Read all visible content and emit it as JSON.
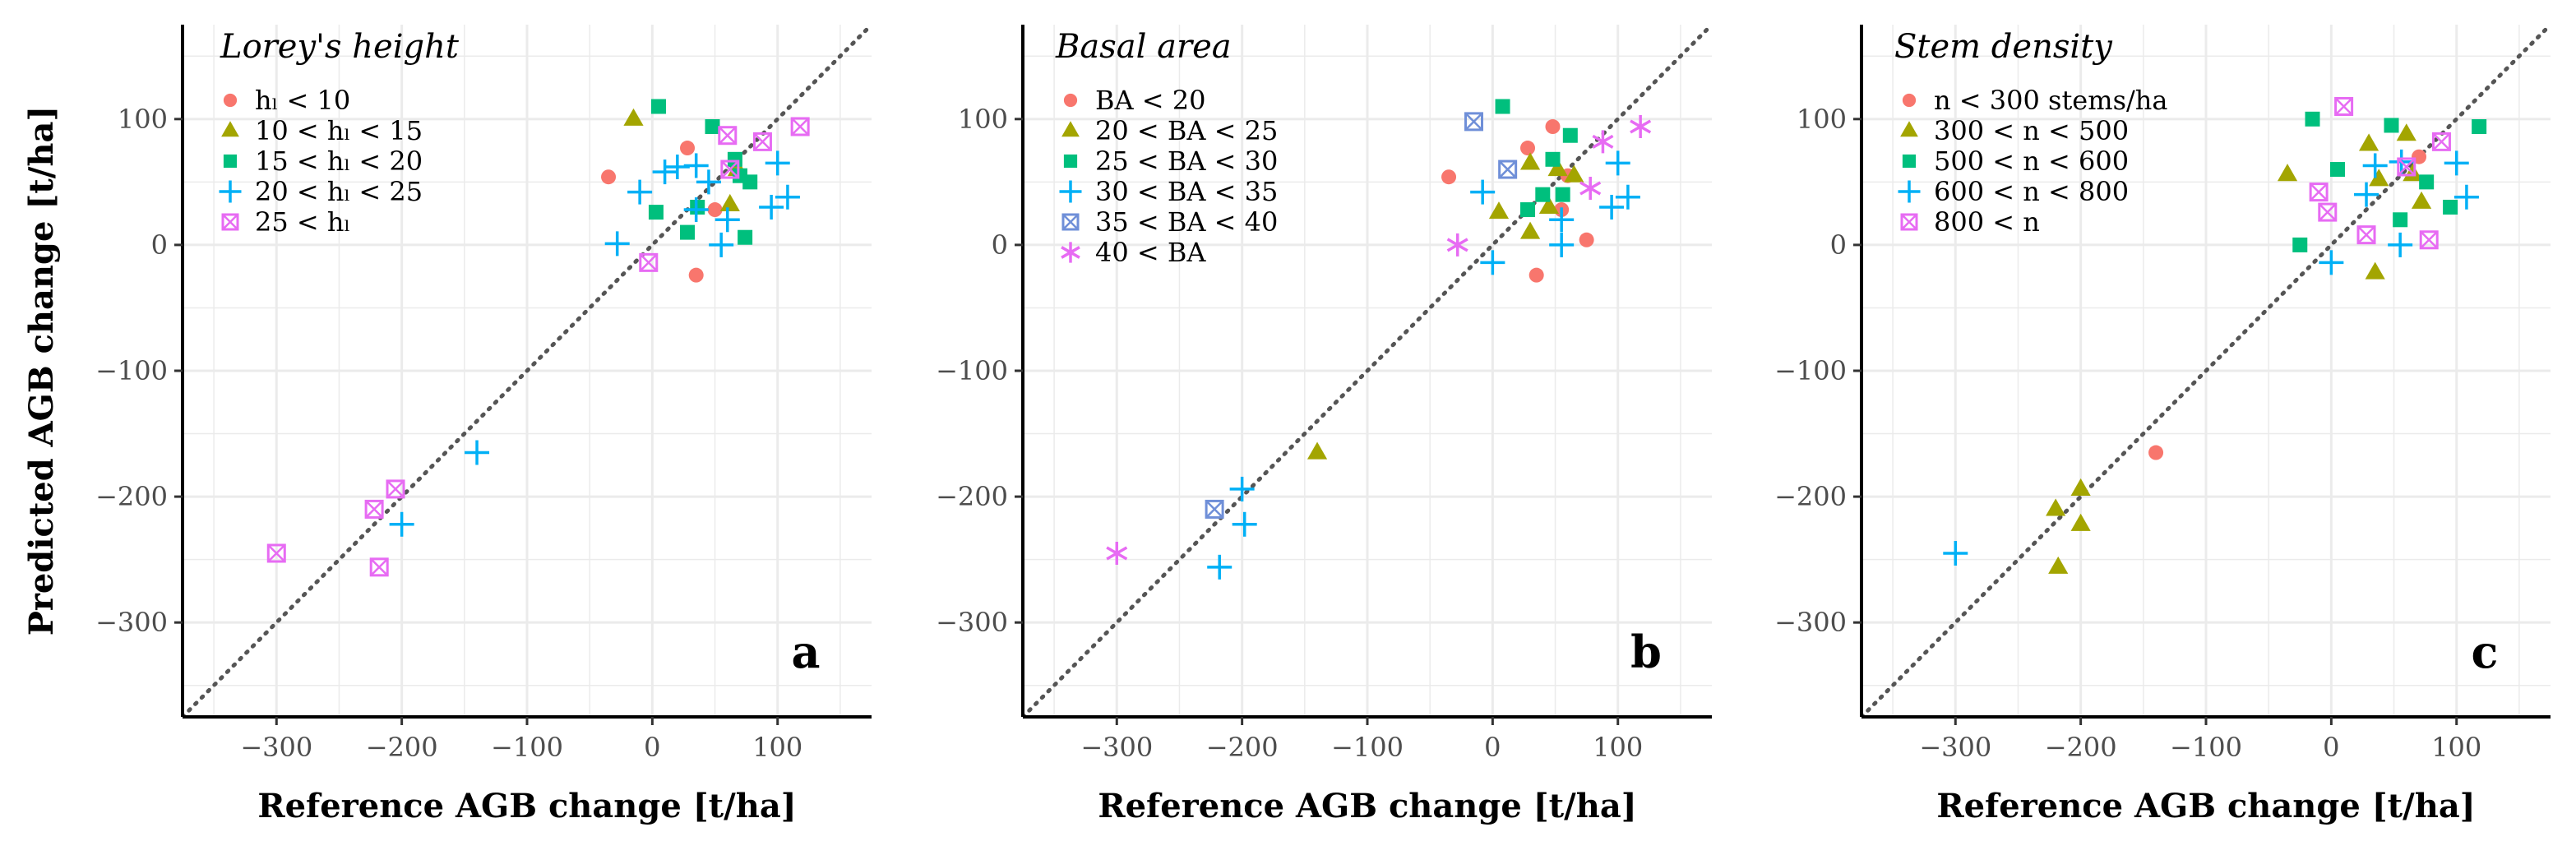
{
  "figure": {
    "ylabel": "Predicted AGB change [t/ha]",
    "xlabel": "Reference AGB change [t/ha]"
  },
  "colors": {
    "c1": "#F8766D",
    "c2": "#A3A500",
    "c3": "#00BF7D",
    "c4": "#00B0F6",
    "c5": "#E76BF3",
    "c5b": "#6F8FD8",
    "c6": "#E76BF3",
    "diag": "#555555",
    "grid": "#ebebeb"
  },
  "chart_data": [
    {
      "panel": "a",
      "type": "scatter",
      "title": "Lorey's height",
      "xlabel": "Reference AGB change [t/ha]",
      "ylabel": "Predicted AGB change [t/ha]",
      "xlim": [
        -375,
        175
      ],
      "ylim": [
        -375,
        175
      ],
      "xticks": [
        -300,
        -200,
        -100,
        0,
        100
      ],
      "yticks": [
        -300,
        -200,
        -100,
        0,
        100
      ],
      "tick_labels": [
        "−300",
        "−200",
        "−100",
        "0",
        "100"
      ],
      "reference_line": "y = x",
      "legend": [
        {
          "label": "hₗ < 10",
          "marker": "circle",
          "color": "#F8766D"
        },
        {
          "label": "10 < hₗ < 15",
          "marker": "triangle",
          "color": "#A3A500"
        },
        {
          "label": "15 < hₗ < 20",
          "marker": "square",
          "color": "#00BF7D"
        },
        {
          "label": "20 < hₗ < 25",
          "marker": "plus",
          "color": "#00B0F6"
        },
        {
          "label": "25 < hₗ",
          "marker": "boxx",
          "color": "#E76BF3"
        }
      ],
      "series": [
        {
          "name": "hₗ < 10",
          "marker": "circle",
          "color": "#F8766D",
          "points": [
            [
              -35,
              54
            ],
            [
              28,
              77
            ],
            [
              35,
              -24
            ],
            [
              50,
              28
            ]
          ]
        },
        {
          "name": "10 < hₗ < 15",
          "marker": "triangle",
          "color": "#A3A500",
          "points": [
            [
              -15,
              100
            ],
            [
              62,
              32
            ],
            [
              68,
              60
            ]
          ]
        },
        {
          "name": "15 < hₗ < 20",
          "marker": "square",
          "color": "#00BF7D",
          "points": [
            [
              5,
              110
            ],
            [
              48,
              94
            ],
            [
              3,
              26
            ],
            [
              28,
              10
            ],
            [
              36,
              30
            ],
            [
              74,
              6
            ],
            [
              70,
              55
            ],
            [
              66,
              68
            ],
            [
              78,
              50
            ]
          ]
        },
        {
          "name": "20 < hₗ < 25",
          "marker": "plus",
          "color": "#00B0F6",
          "points": [
            [
              -28,
              1
            ],
            [
              -10,
              42
            ],
            [
              10,
              58
            ],
            [
              20,
              62
            ],
            [
              35,
              63
            ],
            [
              35,
              28
            ],
            [
              45,
              50
            ],
            [
              55,
              0
            ],
            [
              60,
              20
            ],
            [
              100,
              65
            ],
            [
              95,
              30
            ],
            [
              108,
              38
            ],
            [
              -140,
              -165
            ],
            [
              -200,
              -222
            ]
          ]
        },
        {
          "name": "25 < hₗ",
          "marker": "boxx",
          "color": "#E76BF3",
          "points": [
            [
              -3,
              -14
            ],
            [
              60,
              87
            ],
            [
              88,
              82
            ],
            [
              118,
              94
            ],
            [
              62,
              60
            ],
            [
              -205,
              -194
            ],
            [
              -222,
              -210
            ],
            [
              -218,
              -256
            ],
            [
              -300,
              -245
            ]
          ]
        }
      ]
    },
    {
      "panel": "b",
      "type": "scatter",
      "title": "Basal area",
      "xlabel": "Reference AGB change [t/ha]",
      "xlim": [
        -375,
        175
      ],
      "ylim": [
        -375,
        175
      ],
      "xticks": [
        -300,
        -200,
        -100,
        0,
        100
      ],
      "yticks": [
        -300,
        -200,
        -100,
        0,
        100
      ],
      "tick_labels": [
        "−300",
        "−200",
        "−100",
        "0",
        "100"
      ],
      "reference_line": "y = x",
      "legend": [
        {
          "label": "BA < 20",
          "marker": "circle",
          "color": "#F8766D"
        },
        {
          "label": "20 < BA < 25",
          "marker": "triangle",
          "color": "#A3A500"
        },
        {
          "label": "25 < BA < 30",
          "marker": "square",
          "color": "#00BF7D"
        },
        {
          "label": "30 < BA < 35",
          "marker": "plus",
          "color": "#00B0F6"
        },
        {
          "label": "35 < BA < 40",
          "marker": "boxx",
          "color": "#6F8FD8"
        },
        {
          "label": "40 < BA",
          "marker": "asterisk",
          "color": "#E76BF3"
        }
      ],
      "series": [
        {
          "name": "BA < 20",
          "marker": "circle",
          "color": "#F8766D",
          "points": [
            [
              -35,
              54
            ],
            [
              48,
              94
            ],
            [
              28,
              77
            ],
            [
              35,
              -24
            ],
            [
              60,
              55
            ],
            [
              75,
              4
            ],
            [
              55,
              28
            ]
          ]
        },
        {
          "name": "20 < BA < 25",
          "marker": "triangle",
          "color": "#A3A500",
          "points": [
            [
              5,
              26
            ],
            [
              30,
              65
            ],
            [
              45,
              30
            ],
            [
              52,
              60
            ],
            [
              65,
              55
            ],
            [
              30,
              10
            ],
            [
              -140,
              -165
            ]
          ]
        },
        {
          "name": "25 < BA < 30",
          "marker": "square",
          "color": "#00BF7D",
          "points": [
            [
              8,
              110
            ],
            [
              62,
              87
            ],
            [
              28,
              28
            ],
            [
              56,
              40
            ],
            [
              48,
              68
            ],
            [
              40,
              40
            ]
          ]
        },
        {
          "name": "30 < BA < 35",
          "marker": "plus",
          "color": "#00B0F6",
          "points": [
            [
              -8,
              42
            ],
            [
              0,
              -14
            ],
            [
              55,
              0
            ],
            [
              55,
              20
            ],
            [
              100,
              65
            ],
            [
              95,
              30
            ],
            [
              108,
              38
            ],
            [
              -200,
              -194
            ],
            [
              -198,
              -222
            ],
            [
              -218,
              -256
            ]
          ]
        },
        {
          "name": "35 < BA < 40",
          "marker": "boxx",
          "color": "#6F8FD8",
          "points": [
            [
              -15,
              98
            ],
            [
              12,
              60
            ],
            [
              -222,
              -210
            ]
          ]
        },
        {
          "name": "40 < BA",
          "marker": "asterisk",
          "color": "#E76BF3",
          "points": [
            [
              -28,
              0
            ],
            [
              88,
              82
            ],
            [
              118,
              94
            ],
            [
              78,
              45
            ],
            [
              -300,
              -245
            ]
          ]
        }
      ]
    },
    {
      "panel": "c",
      "type": "scatter",
      "title": "Stem density",
      "xlabel": "Reference AGB change [t/ha]",
      "xlim": [
        -375,
        175
      ],
      "ylim": [
        -375,
        175
      ],
      "xticks": [
        -300,
        -200,
        -100,
        0,
        100
      ],
      "yticks": [
        -300,
        -200,
        -100,
        0,
        100
      ],
      "tick_labels": [
        "−300",
        "−200",
        "−100",
        "0",
        "100"
      ],
      "reference_line": "y = x",
      "legend": [
        {
          "label": "n < 300 stems/ha",
          "marker": "circle",
          "color": "#F8766D"
        },
        {
          "label": "300 < n < 500",
          "marker": "triangle",
          "color": "#A3A500"
        },
        {
          "label": "500 < n < 600",
          "marker": "square",
          "color": "#00BF7D"
        },
        {
          "label": "600 < n < 800",
          "marker": "plus",
          "color": "#00B0F6"
        },
        {
          "label": "800 < n",
          "marker": "boxx",
          "color": "#E76BF3"
        }
      ],
      "series": [
        {
          "name": "n < 300 stems/ha",
          "marker": "circle",
          "color": "#F8766D",
          "points": [
            [
              70,
              70
            ],
            [
              -140,
              -165
            ]
          ]
        },
        {
          "name": "300 < n < 500",
          "marker": "triangle",
          "color": "#A3A500",
          "points": [
            [
              -35,
              56
            ],
            [
              30,
              80
            ],
            [
              60,
              88
            ],
            [
              38,
              52
            ],
            [
              65,
              56
            ],
            [
              35,
              -22
            ],
            [
              72,
              34
            ],
            [
              -200,
              -194
            ],
            [
              -220,
              -210
            ],
            [
              -200,
              -222
            ],
            [
              -218,
              -256
            ]
          ]
        },
        {
          "name": "500 < n < 600",
          "marker": "square",
          "color": "#00BF7D",
          "points": [
            [
              -25,
              0
            ],
            [
              -15,
              100
            ],
            [
              5,
              60
            ],
            [
              48,
              95
            ],
            [
              118,
              94
            ],
            [
              55,
              20
            ],
            [
              95,
              30
            ],
            [
              76,
              50
            ]
          ]
        },
        {
          "name": "600 < n < 800",
          "marker": "plus",
          "color": "#00B0F6",
          "points": [
            [
              0,
              -14
            ],
            [
              35,
              63
            ],
            [
              28,
              40
            ],
            [
              55,
              0
            ],
            [
              56,
              66
            ],
            [
              100,
              65
            ],
            [
              108,
              38
            ],
            [
              -300,
              -245
            ]
          ]
        },
        {
          "name": "800 < n",
          "marker": "boxx",
          "color": "#E76BF3",
          "points": [
            [
              10,
              110
            ],
            [
              -10,
              42
            ],
            [
              -3,
              26
            ],
            [
              28,
              8
            ],
            [
              88,
              82
            ],
            [
              60,
              62
            ],
            [
              78,
              4
            ]
          ]
        }
      ]
    }
  ]
}
